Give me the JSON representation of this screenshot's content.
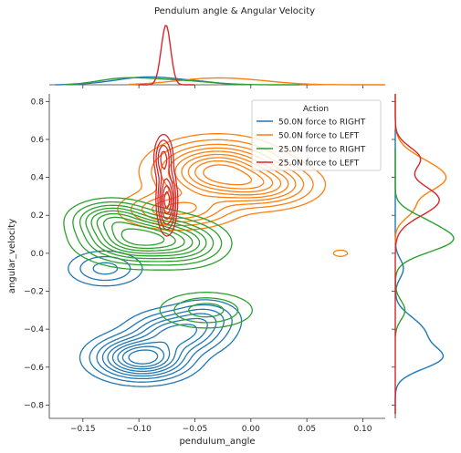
{
  "chart_data": {
    "type": "kde_joint_plot",
    "title": "Pendulum angle & Angular Velocity",
    "xlabel": "pendulum_angle",
    "ylabel": "angular_velocity",
    "xlim": [
      -0.18,
      0.12
    ],
    "ylim": [
      -0.87,
      0.84
    ],
    "x_ticks": [
      -0.15,
      -0.1,
      -0.05,
      0.0,
      0.05,
      0.1
    ],
    "x_tick_labels": [
      "−0.15",
      "−0.10",
      "−0.05",
      "0.00",
      "0.05",
      "0.10"
    ],
    "y_ticks": [
      -0.8,
      -0.6,
      -0.4,
      -0.2,
      0.0,
      0.2,
      0.4,
      0.6,
      0.8
    ],
    "y_tick_labels": [
      "−0.8",
      "−0.6",
      "−0.4",
      "−0.2",
      "0.0",
      "0.2",
      "0.4",
      "0.6",
      "0.8"
    ],
    "legend": {
      "title": "Action",
      "placement": "top-right"
    },
    "series": [
      {
        "name": "50.0N force to RIGHT",
        "color": "#1f77b4",
        "components": [
          {
            "mx": -0.097,
            "my": -0.55,
            "sx": 0.022,
            "sy": 0.06,
            "w": 1.0
          },
          {
            "mx": -0.065,
            "my": -0.42,
            "sx": 0.022,
            "sy": 0.06,
            "w": 0.55
          },
          {
            "mx": -0.13,
            "my": -0.08,
            "sx": 0.018,
            "sy": 0.05,
            "w": 0.22
          },
          {
            "mx": -0.04,
            "my": -0.34,
            "sx": 0.016,
            "sy": 0.05,
            "w": 0.22
          }
        ],
        "levels": [
          0.04,
          0.1,
          0.18,
          0.27,
          0.37,
          0.48,
          0.6,
          0.72,
          0.85
        ],
        "marg_x": [
          -0.175,
          0.0
        ],
        "marg_y": [
          -0.85,
          0.66
        ]
      },
      {
        "name": "50.0N force to LEFT",
        "color": "#ff7f0e",
        "components": [
          {
            "mx": -0.03,
            "my": 0.43,
            "sx": 0.028,
            "sy": 0.08,
            "w": 1.0
          },
          {
            "mx": 0.01,
            "my": 0.36,
            "sx": 0.025,
            "sy": 0.06,
            "w": 0.55
          },
          {
            "mx": -0.065,
            "my": 0.23,
            "sx": 0.025,
            "sy": 0.05,
            "w": 0.45
          },
          {
            "mx": 0.08,
            "my": 0.0,
            "sx": 0.006,
            "sy": 0.015,
            "w": 0.08
          }
        ],
        "levels": [
          0.04,
          0.1,
          0.18,
          0.27,
          0.37,
          0.48,
          0.6,
          0.72,
          0.85
        ],
        "marg_x": [
          -0.11,
          0.12
        ],
        "marg_y": [
          0.05,
          0.84
        ]
      },
      {
        "name": "25.0N force to RIGHT",
        "color": "#2ca02c",
        "components": [
          {
            "mx": -0.1,
            "my": 0.08,
            "sx": 0.025,
            "sy": 0.065,
            "w": 1.0
          },
          {
            "mx": -0.125,
            "my": 0.18,
            "sx": 0.018,
            "sy": 0.05,
            "w": 0.5
          },
          {
            "mx": -0.04,
            "my": -0.3,
            "sx": 0.022,
            "sy": 0.05,
            "w": 0.25
          },
          {
            "mx": -0.06,
            "my": 0.05,
            "sx": 0.02,
            "sy": 0.06,
            "w": 0.4
          }
        ],
        "levels": [
          0.04,
          0.1,
          0.18,
          0.27,
          0.37,
          0.48,
          0.6,
          0.72,
          0.85
        ],
        "marg_x": [
          -0.165,
          0.045
        ],
        "marg_y": [
          -0.44,
          0.56
        ]
      },
      {
        "name": "25.0N force to LEFT",
        "color": "#d62728",
        "components": [
          {
            "mx": -0.075,
            "my": 0.28,
            "sx": 0.004,
            "sy": 0.08,
            "w": 1.0
          },
          {
            "mx": -0.078,
            "my": 0.5,
            "sx": 0.004,
            "sy": 0.06,
            "w": 0.55
          }
        ],
        "levels": [
          0.06,
          0.15,
          0.28,
          0.45,
          0.65,
          0.85
        ],
        "marg_x": [
          -0.1,
          -0.05
        ],
        "marg_y": [
          -0.85,
          0.84
        ]
      }
    ]
  }
}
